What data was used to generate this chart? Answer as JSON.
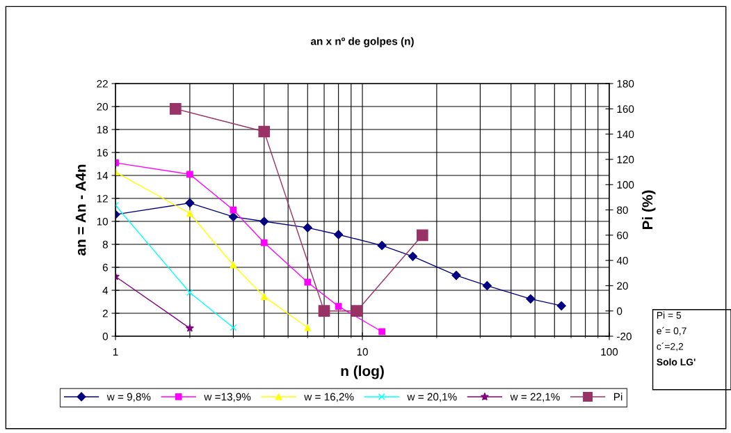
{
  "chart_data": {
    "type": "line",
    "title": "an x nº de golpes (n)",
    "xlabel": "n (log)",
    "ylabel": "an = An - A4n",
    "y2label": "Pi (%)",
    "log": "x",
    "xlim": [
      1,
      100
    ],
    "xticks": [
      1,
      10,
      100
    ],
    "ylim": [
      0,
      22
    ],
    "yticks": [
      0,
      2,
      4,
      6,
      8,
      10,
      12,
      14,
      16,
      18,
      20,
      22
    ],
    "y2lim": [
      -20,
      180
    ],
    "y2ticks": [
      -20,
      0,
      20,
      40,
      60,
      80,
      100,
      120,
      140,
      160,
      180
    ],
    "grid": true,
    "legend": "bottom",
    "line_style": "solid",
    "series": [
      {
        "name": "w = 9,8%",
        "color": "#000080",
        "marker": "diamond",
        "x": [
          1,
          2,
          3,
          4,
          6,
          8,
          12,
          16,
          24,
          32,
          48,
          64
        ],
        "values": [
          10.6,
          11.6,
          10.4,
          10.0,
          9.45,
          8.85,
          7.9,
          6.95,
          5.3,
          4.4,
          3.25,
          2.65
        ]
      },
      {
        "name": "w =13,9%",
        "color": "#ff00ff",
        "marker": "square",
        "x": [
          1,
          2,
          3,
          4,
          6,
          8,
          12
        ],
        "values": [
          15.1,
          14.1,
          11.0,
          8.15,
          4.7,
          2.6,
          0.4
        ]
      },
      {
        "name": "w = 16,2%",
        "color": "#ffff00",
        "marker": "triangle",
        "x": [
          1,
          2,
          3,
          4,
          6
        ],
        "values": [
          14.3,
          10.7,
          6.2,
          3.45,
          0.75
        ]
      },
      {
        "name": "w = 20,1%",
        "color": "#00ffff",
        "marker": "cross",
        "x": [
          1,
          2,
          3
        ],
        "values": [
          11.4,
          3.8,
          0.75
        ]
      },
      {
        "name": "w = 22,1%",
        "color": "#800080",
        "marker": "star",
        "x": [
          1,
          2
        ],
        "values": [
          5.2,
          0.7
        ]
      },
      {
        "name": "Pi",
        "color": "#993366",
        "marker": "square",
        "axis": "y2",
        "x": [
          1.75,
          4,
          7,
          9.5,
          17.5
        ],
        "values": [
          160,
          142,
          0,
          0,
          60
        ]
      }
    ],
    "annotations": [
      "Pi = 5",
      "e´= 0,7",
      "c´=2,2",
      "Solo LG'"
    ]
  }
}
